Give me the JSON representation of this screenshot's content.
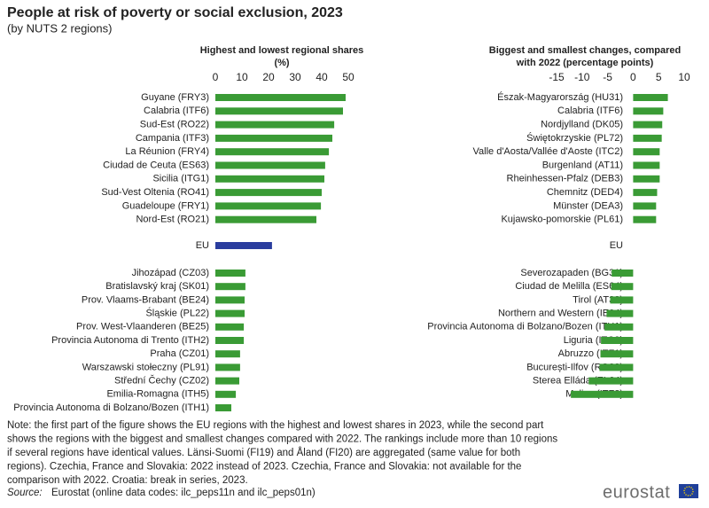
{
  "header": {
    "title": "People at risk of poverty or social exclusion, 2023",
    "subtitle": "(by NUTS  2 regions)"
  },
  "chart_data": [
    {
      "type": "bar",
      "orientation": "horizontal",
      "title": [
        "Highest and lowest regional shares",
        "(%)"
      ],
      "categories": [
        "Guyane (FRY3)",
        "Calabria (ITF6)",
        "Sud-Est (RO22)",
        "Campania (ITF3)",
        "La Réunion  (FRY4)",
        "Ciudad de Ceuta (ES63)",
        "Sicilia (ITG1)",
        "Sud-Vest Oltenia (RO41)",
        "Guadeloupe (FRY1)",
        "Nord-Est (RO21)",
        "EU",
        "Jihozápad (CZ03)",
        "Bratislavský kraj (SK01)",
        "Prov. Vlaams-Brabant (BE24)",
        "Śląskie (PL22)",
        "Prov. West-Vlaanderen (BE25)",
        "Provincia Autonoma di Trento (ITH2)",
        "Praha (CZ01)",
        "Warszawski stołeczny (PL91)",
        "Střední Čechy (CZ02)",
        "Emilia-Romagna (ITH5)",
        "Provincia Autonoma di Bolzano/Bozen (ITH1)"
      ],
      "values": [
        49.0,
        48.0,
        44.7,
        44.0,
        42.7,
        41.3,
        41.0,
        40.0,
        39.7,
        38.0,
        21.3,
        11.3,
        11.3,
        11.0,
        11.0,
        10.7,
        10.7,
        9.3,
        9.3,
        9.0,
        7.7,
        6.0
      ],
      "color": "#3a9b35",
      "highlight": {
        "category": "EU",
        "color": "#2a3d9e"
      },
      "xlim": [
        0,
        50
      ],
      "xticks": [
        0,
        10,
        20,
        30,
        40,
        50
      ]
    },
    {
      "type": "bar",
      "orientation": "horizontal",
      "title": [
        "Biggest and smallest changes, compared",
        "with 2022 (percentage points)"
      ],
      "categories": [
        "Észak-Magyarország (HU31)",
        "Calabria (ITF6)",
        "Nordjylland (DK05)",
        "Świętokrzyskie (PL72)",
        "Valle d'Aosta/Vallée d'Aoste (ITC2)",
        "Burgenland (AT11)",
        "Rheinhessen-Pfalz (DEB3)",
        "Chemnitz (DED4)",
        "Münster (DEA3)",
        "Kujawsko-pomorskie (PL61)",
        "EU",
        "Severozapaden (BG31)",
        "Ciudad de Melilla (ES64)",
        "Tirol (AT33)",
        "Northern and Western (IE04)",
        "Provincia Autonoma di Bolzano/Bozen (ITH1)",
        "Liguria (ITC3)",
        "Abruzzo (ITF1)",
        "București-Ilfov (RO32)",
        "Sterea Elláda (EL64)",
        "Molise (ITF2)"
      ],
      "values": [
        6.8,
        5.9,
        5.7,
        5.6,
        5.2,
        5.2,
        5.2,
        4.7,
        4.5,
        4.5,
        null,
        -4.2,
        -4.3,
        -4.5,
        -5.2,
        -5.6,
        -6.3,
        -6.4,
        -6.6,
        -8.7,
        -12.2
      ],
      "color": "#3a9b35",
      "xlim": [
        -15,
        10
      ],
      "xticks": [
        -15,
        -10,
        -5,
        0,
        5,
        10
      ]
    }
  ],
  "footer": {
    "note": [
      "Note: the first part of the figure shows the EU regions with the highest and lowest shares in 2023, while the second part",
      "shows the regions with the biggest and smallest changes compared with 2022. The rankings include more than 10 regions",
      "if several regions have identical values. Länsi-Suomi (FI19) and Åland (FI20) are aggregated (same value for both",
      "regions). Czechia, France and Slovakia: 2022 instead of 2023. Czechia, France and Slovakia: not available for the",
      "comparison with 2022. Croatia: break in series, 2023."
    ],
    "source_label": "Source:",
    "source": "Eurostat (online data codes: ilc_peps11n and ilc_peps01n)",
    "logo": "eurostat"
  }
}
